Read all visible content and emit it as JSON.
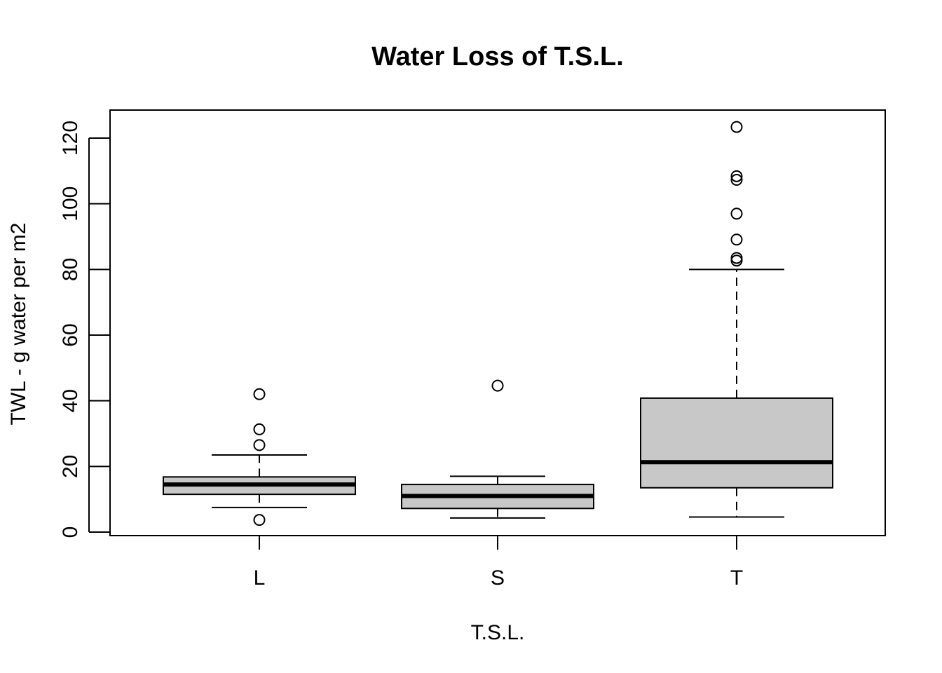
{
  "chart_data": {
    "type": "box",
    "title": "Water Loss of T.S.L.",
    "xlabel": "T.S.L.",
    "ylabel": "TWL - g water per m2",
    "categories": [
      "L",
      "S",
      "T"
    ],
    "ylim": [
      -1,
      128
    ],
    "yticks": [
      0,
      20,
      40,
      60,
      80,
      100,
      120
    ],
    "grid": false,
    "legend": "none",
    "box_fill": "#c8c8c8",
    "stroke": "#000000",
    "boxes": [
      {
        "category": "L",
        "whisker_low": 7.5,
        "q1": 11.5,
        "median": 14.5,
        "q3": 16.8,
        "whisker_high": 23.5,
        "outliers": [
          42.0,
          31.3,
          26.5,
          3.7
        ]
      },
      {
        "category": "S",
        "whisker_low": 4.3,
        "q1": 7.2,
        "median": 11.0,
        "q3": 14.5,
        "whisker_high": 17.0,
        "outliers": [
          44.6
        ]
      },
      {
        "category": "T",
        "whisker_low": 4.6,
        "q1": 13.5,
        "median": 21.3,
        "q3": 40.8,
        "whisker_high": 80.0,
        "outliers": [
          123.4,
          108.4,
          107.3,
          97.0,
          89.1,
          83.5,
          82.7
        ]
      }
    ]
  }
}
